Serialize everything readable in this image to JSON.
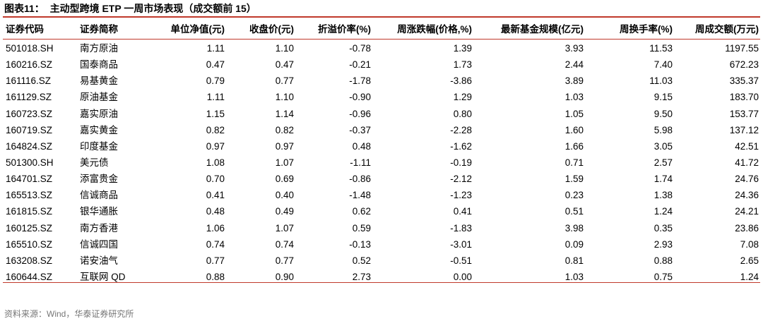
{
  "title": "图表11：  主动型跨境 ETP 一周市场表现（成交额前 15）",
  "table": {
    "header": [
      "证券代码",
      "证券简称",
      "单位净值(元)",
      "收盘价(元)",
      "折溢价率(%)",
      "周涨跌幅(价格,%)",
      "最新基金规模(亿元)",
      "周换手率(%)",
      "周成交额(万元)"
    ],
    "rows": [
      [
        "501018.SH",
        "南方原油",
        "1.11",
        "1.10",
        "-0.78",
        "1.39",
        "3.93",
        "11.53",
        "1197.55"
      ],
      [
        "160216.SZ",
        "国泰商品",
        "0.47",
        "0.47",
        "-0.21",
        "1.73",
        "2.44",
        "7.40",
        "672.23"
      ],
      [
        "161116.SZ",
        "易基黄金",
        "0.79",
        "0.77",
        "-1.78",
        "-3.86",
        "3.89",
        "11.03",
        "335.37"
      ],
      [
        "161129.SZ",
        "原油基金",
        "1.11",
        "1.10",
        "-0.90",
        "1.29",
        "1.03",
        "9.15",
        "183.70"
      ],
      [
        "160723.SZ",
        "嘉实原油",
        "1.15",
        "1.14",
        "-0.96",
        "0.80",
        "1.05",
        "9.50",
        "153.77"
      ],
      [
        "160719.SZ",
        "嘉实黄金",
        "0.82",
        "0.82",
        "-0.37",
        "-2.28",
        "1.60",
        "5.98",
        "137.12"
      ],
      [
        "164824.SZ",
        "印度基金",
        "0.97",
        "0.97",
        "0.48",
        "-1.62",
        "1.66",
        "3.05",
        "42.51"
      ],
      [
        "501300.SH",
        "美元债",
        "1.08",
        "1.07",
        "-1.11",
        "-0.19",
        "0.71",
        "2.57",
        "41.72"
      ],
      [
        "164701.SZ",
        "添富贵金",
        "0.70",
        "0.69",
        "-0.86",
        "-2.12",
        "1.59",
        "1.74",
        "24.76"
      ],
      [
        "165513.SZ",
        "信诚商品",
        "0.41",
        "0.40",
        "-1.48",
        "-1.23",
        "0.23",
        "1.38",
        "24.36"
      ],
      [
        "161815.SZ",
        "银华通胀",
        "0.48",
        "0.49",
        "0.62",
        "0.41",
        "0.51",
        "1.24",
        "24.21"
      ],
      [
        "160125.SZ",
        "南方香港",
        "1.06",
        "1.07",
        "0.59",
        "-1.83",
        "3.98",
        "0.35",
        "23.86"
      ],
      [
        "165510.SZ",
        "信诚四国",
        "0.74",
        "0.74",
        "-0.13",
        "-3.01",
        "0.09",
        "2.93",
        "7.08"
      ],
      [
        "163208.SZ",
        "诺安油气",
        "0.77",
        "0.77",
        "0.52",
        "-0.51",
        "0.81",
        "0.88",
        "2.65"
      ],
      [
        "160644.SZ",
        "互联网 QD",
        "0.88",
        "0.90",
        "2.73",
        "0.00",
        "1.03",
        "0.75",
        "1.24"
      ]
    ]
  },
  "source": "资料来源：Wind，华泰证券研究所"
}
